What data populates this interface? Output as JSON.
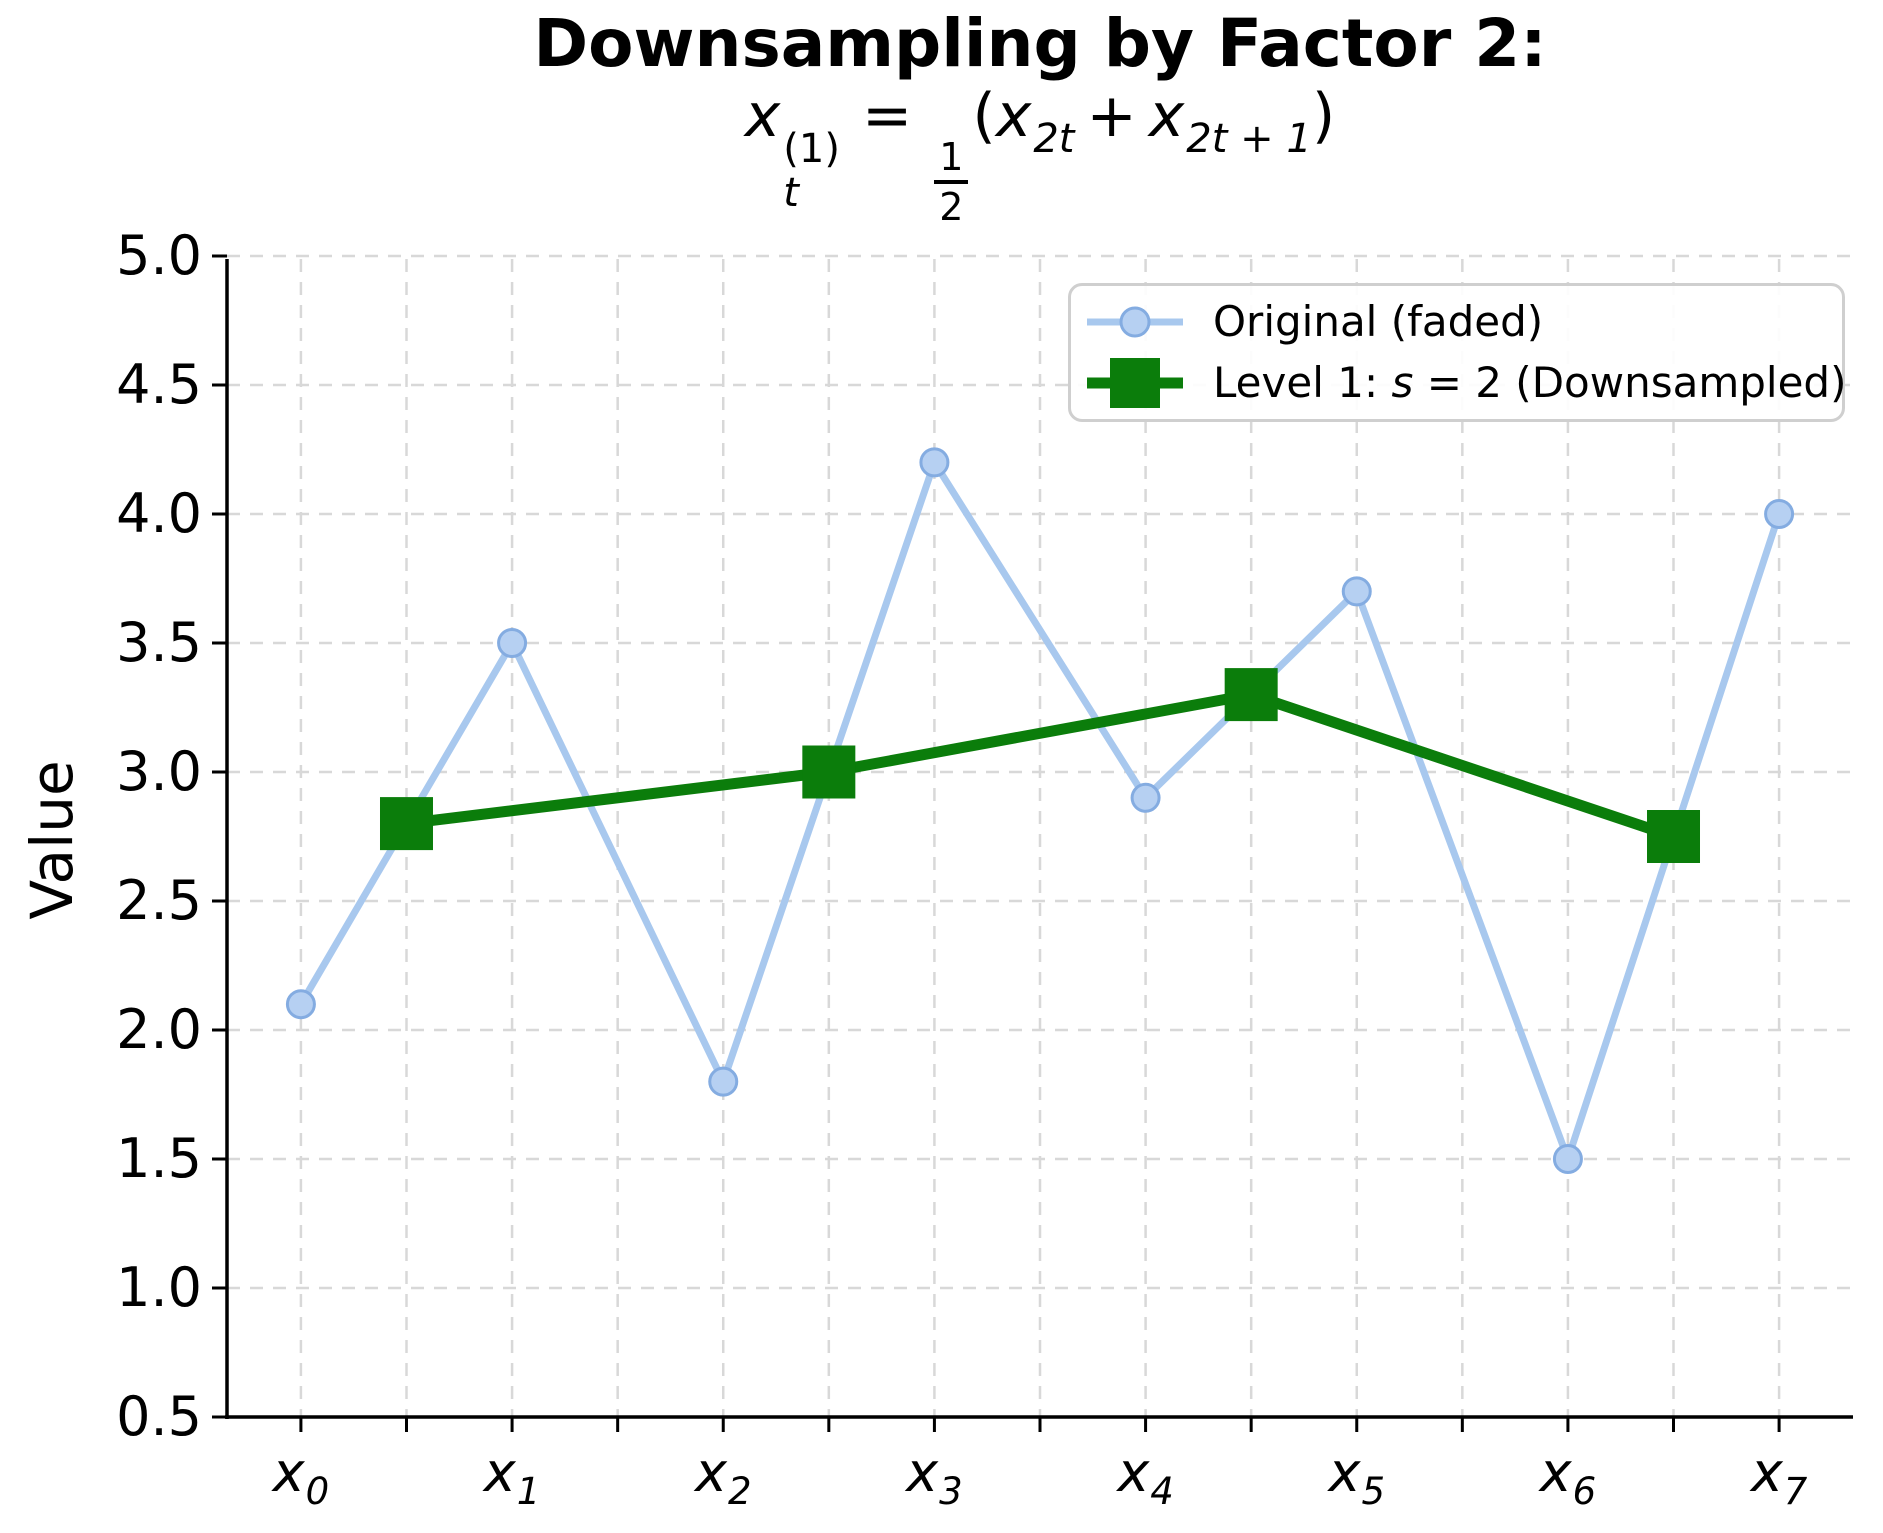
{
  "title": "Downsampling by Factor 2:",
  "subtitle": {
    "x": "x",
    "sup": "(1)",
    "sub": "t",
    "eq": "=",
    "num": "1",
    "den": "2",
    "lparen": "(",
    "sub1": "2t",
    "plus": "+",
    "sub2": "2t + 1",
    "rparen": ")"
  },
  "legend": {
    "items": [
      {
        "label": "Original (faded)"
      },
      {
        "pre": "Level 1: ",
        "var": "s",
        "post": " = 2 (Downsampled)"
      }
    ]
  },
  "chart_data": {
    "type": "line",
    "title": "Downsampling by Factor 2:",
    "subtitle_plain": "x_t^(1) = 1/2 (x_2t + x_2t+1)",
    "xlabel": "",
    "ylabel": "Value",
    "ylim": [
      0.5,
      5.0
    ],
    "xlim": [
      -0.35,
      7.35
    ],
    "yticks": [
      "0.5",
      "1.0",
      "1.5",
      "2.0",
      "2.5",
      "3.0",
      "3.5",
      "4.0",
      "4.5",
      "5.0"
    ],
    "xtick_labels": [
      {
        "base": "x",
        "sub": "0",
        "value": 0
      },
      {
        "base": "x",
        "sub": "1",
        "value": 1
      },
      {
        "base": "x",
        "sub": "2",
        "value": 2
      },
      {
        "base": "x",
        "sub": "3",
        "value": 3
      },
      {
        "base": "x",
        "sub": "4",
        "value": 4
      },
      {
        "base": "x",
        "sub": "5",
        "value": 5
      },
      {
        "base": "x",
        "sub": "6",
        "value": 6
      },
      {
        "base": "x",
        "sub": "7",
        "value": 7
      }
    ],
    "grid": true,
    "grid_step": 0.5,
    "legend_position": "upper right",
    "series": [
      {
        "name": "Original (faded)",
        "x": [
          0,
          1,
          2,
          3,
          4,
          5,
          6,
          7
        ],
        "values": [
          2.1,
          3.5,
          1.8,
          4.2,
          2.9,
          3.7,
          1.5,
          4.0
        ],
        "marker": "circle",
        "line_color": "#a8c8ee",
        "marker_fill": "#b6d0f2",
        "marker_edge": "#84ace1",
        "line_width": 7
      },
      {
        "name": "Level 1: s = 2 (Downsampled)",
        "x": [
          0.5,
          2.5,
          4.5,
          6.5
        ],
        "values": [
          2.8,
          3.0,
          3.3,
          2.75
        ],
        "marker": "square",
        "line_color": "#0b7d0b",
        "marker_fill": "#0b7d0b",
        "marker_edge": "#0b7d0b",
        "line_width": 11
      }
    ],
    "colors": {
      "grid": "#d8d8d8",
      "spine": "#000000",
      "tick": "#000000",
      "legend_border": "#cfcfcf",
      "text": "#000000"
    }
  }
}
